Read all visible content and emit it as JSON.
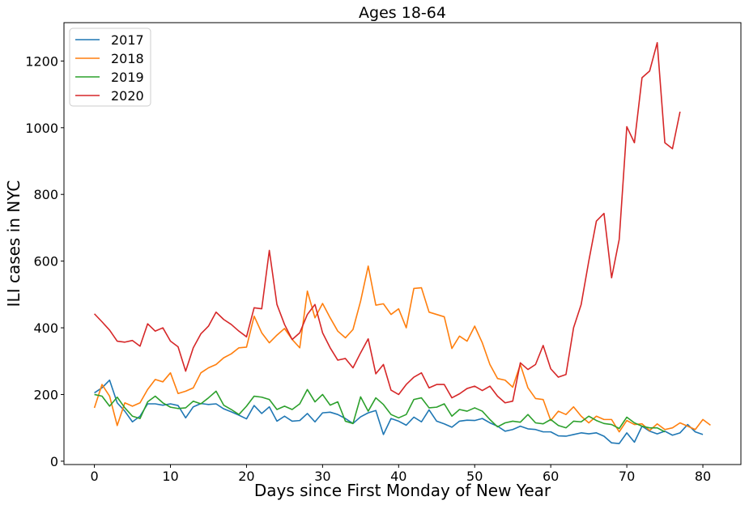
{
  "chart_data": {
    "type": "line",
    "title": "Ages 18-64",
    "xlabel": "Days since First Monday of New Year",
    "ylabel": "ILI cases in NYC",
    "xlim": [
      -4,
      85
    ],
    "ylim": [
      -10,
      1315
    ],
    "xticks": [
      0,
      10,
      20,
      30,
      40,
      50,
      60,
      70,
      80
    ],
    "yticks": [
      0,
      200,
      400,
      600,
      800,
      1000,
      1200
    ],
    "grid": false,
    "legend_position": "top-left",
    "series": [
      {
        "name": "2017",
        "color": "#1f77b4",
        "values": [
          205,
          220,
          243,
          175,
          150,
          118,
          135,
          172,
          172,
          168,
          172,
          167,
          130,
          163,
          173,
          170,
          172,
          157,
          148,
          138,
          127,
          167,
          143,
          163,
          120,
          135,
          120,
          122,
          143,
          118,
          145,
          147,
          140,
          128,
          113,
          133,
          145,
          152,
          80,
          128,
          120,
          108,
          132,
          118,
          154,
          120,
          112,
          102,
          120,
          123,
          122,
          128,
          115,
          105,
          90,
          95,
          105,
          97,
          95,
          88,
          88,
          76,
          75,
          80,
          85,
          82,
          85,
          75,
          55,
          53,
          85,
          57,
          105,
          90,
          82,
          90,
          78,
          85,
          110,
          88,
          80
        ]
      },
      {
        "name": "2018",
        "color": "#ff7f0e",
        "values": [
          160,
          230,
          195,
          107,
          175,
          165,
          175,
          215,
          245,
          238,
          265,
          203,
          210,
          220,
          265,
          280,
          290,
          310,
          322,
          340,
          342,
          435,
          385,
          355,
          378,
          398,
          365,
          340,
          510,
          430,
          473,
          430,
          390,
          370,
          395,
          480,
          585,
          468,
          472,
          440,
          457,
          400,
          518,
          520,
          447,
          440,
          433,
          338,
          375,
          360,
          405,
          355,
          290,
          248,
          243,
          222,
          290,
          220,
          188,
          185,
          122,
          150,
          140,
          163,
          135,
          115,
          135,
          125,
          125,
          88,
          122,
          110,
          112,
          92,
          112,
          95,
          100,
          115,
          105,
          95,
          125,
          108
        ]
      },
      {
        "name": "2019",
        "color": "#2ca02c",
        "values": [
          200,
          195,
          165,
          192,
          160,
          135,
          128,
          178,
          195,
          175,
          162,
          158,
          160,
          180,
          172,
          190,
          210,
          168,
          155,
          140,
          165,
          195,
          192,
          185,
          155,
          165,
          155,
          172,
          215,
          178,
          200,
          168,
          178,
          120,
          113,
          193,
          150,
          190,
          170,
          140,
          130,
          140,
          185,
          190,
          160,
          162,
          172,
          135,
          155,
          150,
          160,
          150,
          125,
          103,
          115,
          120,
          117,
          140,
          115,
          112,
          125,
          107,
          100,
          120,
          118,
          135,
          122,
          113,
          110,
          98,
          132,
          115,
          105,
          100,
          100,
          88
        ]
      },
      {
        "name": "2020",
        "color": "#d62728",
        "values": [
          442,
          418,
          393,
          360,
          357,
          362,
          345,
          412,
          390,
          400,
          360,
          343,
          270,
          340,
          382,
          405,
          447,
          425,
          410,
          390,
          373,
          460,
          457,
          632,
          470,
          410,
          365,
          385,
          440,
          470,
          385,
          340,
          303,
          308,
          280,
          325,
          367,
          262,
          290,
          213,
          200,
          230,
          252,
          265,
          220,
          230,
          230,
          190,
          202,
          218,
          225,
          212,
          225,
          195,
          175,
          180,
          295,
          275,
          290,
          347,
          277,
          252,
          260,
          400,
          470,
          600,
          720,
          743,
          550,
          665,
          1003,
          955,
          1150,
          1170,
          1255,
          955,
          937,
          1048
        ]
      }
    ]
  }
}
